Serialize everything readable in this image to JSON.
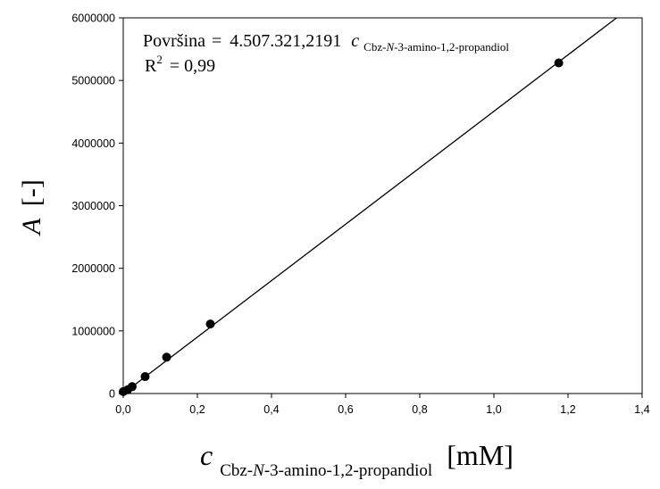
{
  "chart_data": {
    "type": "scatter",
    "title": "",
    "x_axis": {
      "label_var": "c",
      "label_sub_parts": [
        "Cbz-",
        "N",
        "-3-amino-1,2-propandiol"
      ],
      "label_unit": "[mM]",
      "range": [
        0,
        1.4
      ],
      "ticks": [
        0,
        0.2,
        0.4,
        0.6,
        0.8,
        1.0,
        1.2,
        1.4
      ],
      "tick_labels": [
        "0,0",
        "0,2",
        "0,4",
        "0,6",
        "0,8",
        "1,0",
        "1,2",
        "1,4"
      ]
    },
    "y_axis": {
      "label_var": "A",
      "label_unit": "[-]",
      "range": [
        0,
        6000000
      ],
      "ticks": [
        0,
        1000000,
        2000000,
        3000000,
        4000000,
        5000000,
        6000000
      ],
      "tick_labels": [
        "0",
        "1000000",
        "2000000",
        "3000000",
        "4000000",
        "5000000",
        "6000000"
      ]
    },
    "points": [
      {
        "x": 0.0,
        "y": 30000
      },
      {
        "x": 0.012,
        "y": 60000
      },
      {
        "x": 0.024,
        "y": 110000
      },
      {
        "x": 0.059,
        "y": 270000
      },
      {
        "x": 0.117,
        "y": 580000
      },
      {
        "x": 0.235,
        "y": 1110000
      },
      {
        "x": 1.175,
        "y": 5280000
      }
    ],
    "fit_line": {
      "slope": 4507321.2191,
      "intercept": 0
    },
    "annotation": {
      "equation_lhs": "Površina",
      "equation_eq": "=",
      "equation_rhs": "4.507.321,2191",
      "equation_var": "c",
      "equation_sub_parts": [
        "Cbz-",
        "N",
        "-3-amino-1,2-propandiol"
      ],
      "r2_label": "R",
      "r2_sup": "2",
      "r2_value": "= 0,99"
    },
    "grid": false,
    "legend": "none"
  }
}
